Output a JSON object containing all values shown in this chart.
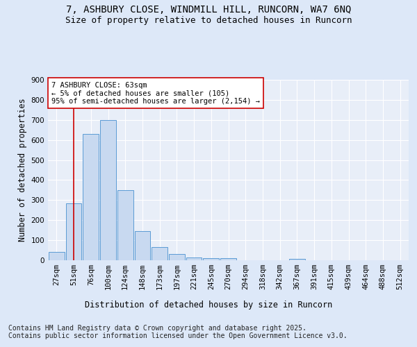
{
  "title_line1": "7, ASHBURY CLOSE, WINDMILL HILL, RUNCORN, WA7 6NQ",
  "title_line2": "Size of property relative to detached houses in Runcorn",
  "xlabel": "Distribution of detached houses by size in Runcorn",
  "ylabel": "Number of detached properties",
  "bins": [
    "27sqm",
    "51sqm",
    "76sqm",
    "100sqm",
    "124sqm",
    "148sqm",
    "173sqm",
    "197sqm",
    "221sqm",
    "245sqm",
    "270sqm",
    "294sqm",
    "318sqm",
    "342sqm",
    "367sqm",
    "391sqm",
    "415sqm",
    "439sqm",
    "464sqm",
    "488sqm",
    "512sqm"
  ],
  "values": [
    40,
    285,
    630,
    700,
    350,
    145,
    65,
    30,
    15,
    10,
    10,
    0,
    0,
    0,
    7,
    0,
    0,
    0,
    0,
    0,
    0
  ],
  "bar_color": "#c8d9f0",
  "bar_edge_color": "#5b9bd5",
  "vline_x": 1.0,
  "vline_color": "#cc0000",
  "annotation_text": "7 ASHBURY CLOSE: 63sqm\n← 5% of detached houses are smaller (105)\n95% of semi-detached houses are larger (2,154) →",
  "annotation_box_color": "#ffffff",
  "annotation_box_edge": "#cc0000",
  "ylim": [
    0,
    900
  ],
  "yticks": [
    0,
    100,
    200,
    300,
    400,
    500,
    600,
    700,
    800,
    900
  ],
  "footnote": "Contains HM Land Registry data © Crown copyright and database right 2025.\nContains public sector information licensed under the Open Government Licence v3.0.",
  "bg_color": "#dde8f8",
  "plot_bg": "#e8eef8",
  "grid_color": "#ffffff",
  "title_fontsize": 10,
  "subtitle_fontsize": 9,
  "axis_label_fontsize": 8.5,
  "tick_fontsize": 7.5,
  "annotation_fontsize": 7.5,
  "footnote_fontsize": 7
}
